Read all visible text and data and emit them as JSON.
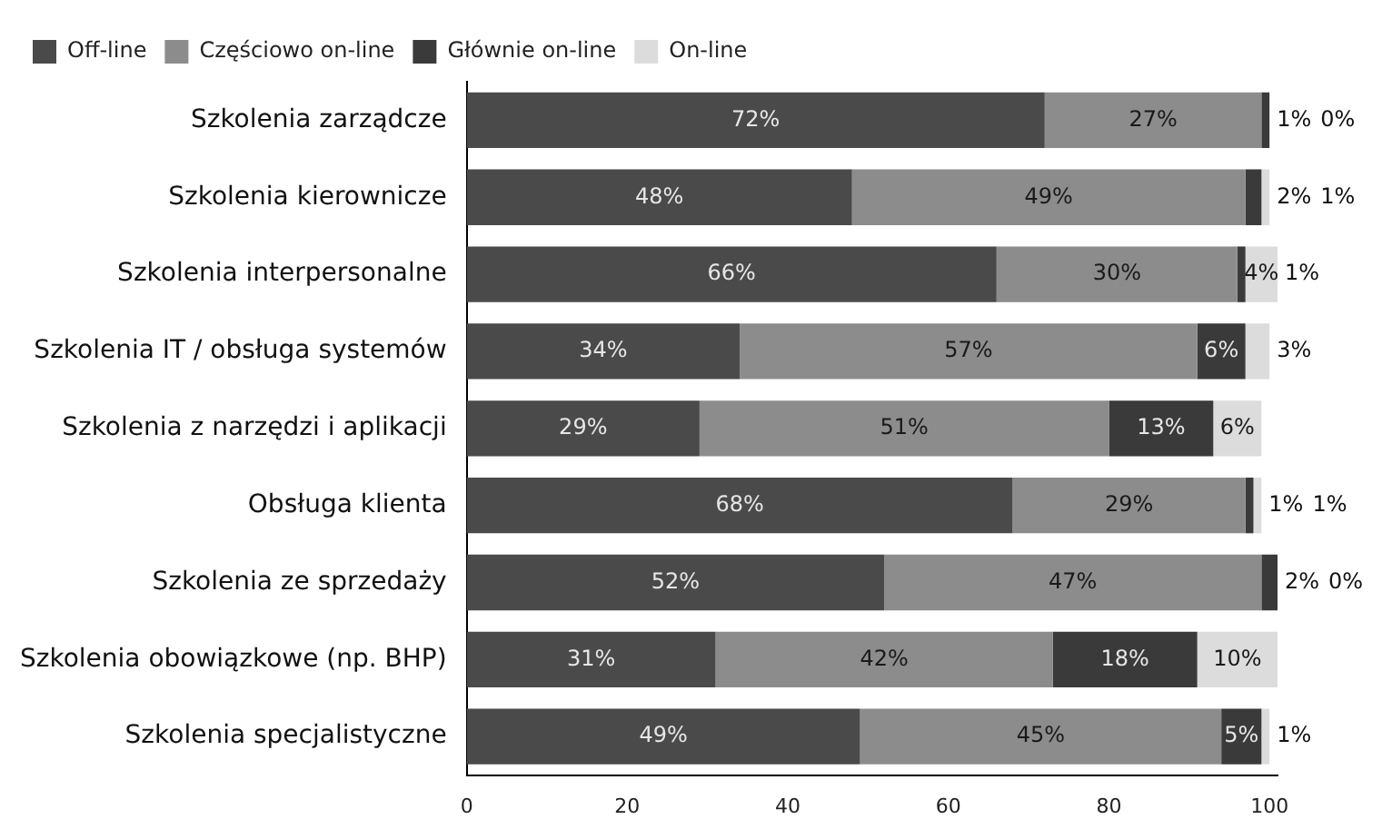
{
  "chart_data": {
    "type": "bar",
    "orientation": "horizontal",
    "stacked": true,
    "legend": "top left",
    "categories": [
      "Szkolenia zarządcze",
      "Szkolenia kierownicze",
      "Szkolenia interpersonalne",
      "Szkolenia IT / obsługa systemów",
      "Szkolenia z narzędzi i aplikacji",
      "Obsługa klienta",
      "Szkolenia ze sprzedaży",
      "Szkolenia obowiązkowe (np. BHP)",
      "Szkolenia specjalistyczne"
    ],
    "series": [
      {
        "name": "Off-line",
        "color": "#4a4a4a",
        "values": [
          72,
          48,
          66,
          34,
          29,
          68,
          52,
          31,
          49
        ],
        "value_labels": [
          "72%",
          "48%",
          "66%",
          "34%",
          "29%",
          "68%",
          "52%",
          "31%",
          "49%"
        ]
      },
      {
        "name": "Częściowo on-line",
        "color": "#8c8c8c",
        "values": [
          27,
          49,
          30,
          57,
          51,
          29,
          47,
          42,
          45
        ],
        "value_labels": [
          "27%",
          "49%",
          "30%",
          "57%",
          "51%",
          "29%",
          "47%",
          "42%",
          "45%"
        ]
      },
      {
        "name": "Głównie on-line",
        "color": "#3a3a3a",
        "values": [
          1,
          2,
          1,
          6,
          13,
          1,
          2,
          18,
          5
        ],
        "value_labels": [
          "1%",
          "2%",
          "1%",
          "6%",
          "13%",
          "1%",
          "2%",
          "18%",
          "5%"
        ]
      },
      {
        "name": "On-line",
        "color": "#dcdcdc",
        "values": [
          0,
          1,
          4,
          3,
          6,
          1,
          0,
          10,
          1
        ],
        "value_labels": [
          "0%",
          "1%",
          "4%",
          "3%",
          "6%",
          "1%",
          "0%",
          "10%",
          "1%"
        ]
      }
    ],
    "xlim": [
      0,
      101
    ],
    "xticks": [
      0,
      20,
      40,
      60,
      80,
      100
    ]
  }
}
